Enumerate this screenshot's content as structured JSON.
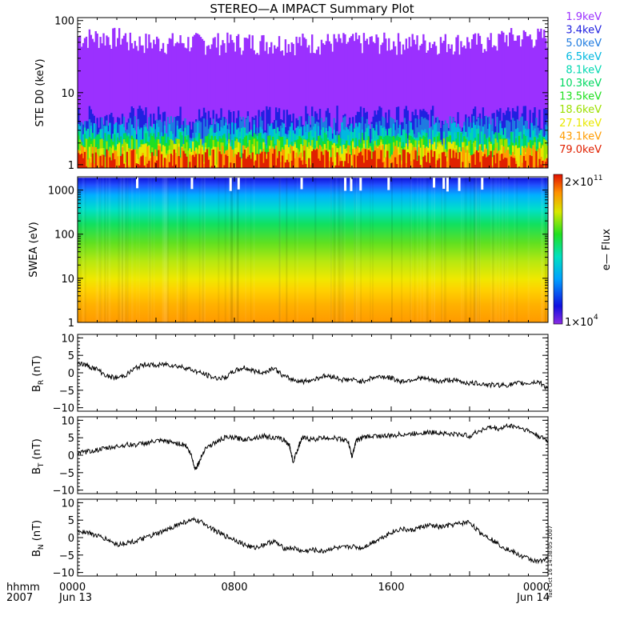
{
  "title": "STEREO—A IMPACT Summary Plot",
  "timestamp_text": "Tue Oct 16 14:38:05 2007",
  "time_axis": {
    "corner_top": "hhmm",
    "corner_bottom": "2007",
    "ticks": [
      {
        "hours": 0,
        "top": "0000",
        "bottom": "Jun 13"
      },
      {
        "hours": 8,
        "top": "0800",
        "bottom": ""
      },
      {
        "hours": 16,
        "top": "1600",
        "bottom": ""
      },
      {
        "hours": 24,
        "top": "0000",
        "bottom": "Jun 14"
      }
    ]
  },
  "chart_data": [
    {
      "type": "line",
      "id": "ste",
      "ylabel": "STE D0 (keV)",
      "yscale": "log",
      "ylim": [
        0.9,
        110
      ],
      "yticks": [
        {
          "v": 1,
          "label": "1"
        },
        {
          "v": 10,
          "label": "10"
        },
        {
          "v": 100,
          "label": "100"
        }
      ],
      "x_range_hours": [
        0,
        24
      ],
      "legend_position": "right",
      "series": [
        {
          "name": "1.9keV",
          "color": "#9b30ff",
          "level": 70
        },
        {
          "name": "3.4keV",
          "color": "#2020e0",
          "level": 4.4
        },
        {
          "name": "5.0keV",
          "color": "#1f7be0",
          "level": 3.2
        },
        {
          "name": "6.5keV",
          "color": "#00b8e0",
          "level": 2.6
        },
        {
          "name": "8.1keV",
          "color": "#00d8b0",
          "level": 2.2
        },
        {
          "name": "10.3keV",
          "color": "#00d860",
          "level": 1.9
        },
        {
          "name": "13.5keV",
          "color": "#20e020",
          "level": 1.7
        },
        {
          "name": "18.6keV",
          "color": "#9ce000",
          "level": 1.55
        },
        {
          "name": "27.1keV",
          "color": "#e8e800",
          "level": 1.4
        },
        {
          "name": "43.1keV",
          "color": "#ff9c00",
          "level": 1.25
        },
        {
          "name": "79.0keV",
          "color": "#e02000",
          "level": 1.1
        }
      ]
    },
    {
      "type": "heatmap",
      "id": "swea",
      "ylabel": "SWEA (eV)",
      "yscale": "log",
      "ylim": [
        1,
        2000
      ],
      "yticks": [
        {
          "v": 1,
          "label": "1"
        },
        {
          "v": 10,
          "label": "10"
        },
        {
          "v": 100,
          "label": "100"
        },
        {
          "v": 1000,
          "label": "1000"
        }
      ],
      "x_range_hours": [
        0,
        24
      ],
      "colorbar": {
        "label": "e— Flux",
        "max_label": "2×10",
        "max_exp": "11",
        "min_label": "1×10",
        "min_exp": "4",
        "range": [
          10000,
          200000000000
        ],
        "scale": "log"
      }
    },
    {
      "type": "line",
      "id": "br",
      "ylabel_main": "B",
      "ylabel_sub": "R",
      "ylabel_unit": " (nT)",
      "ylim": [
        -11,
        11
      ],
      "yticks": [
        {
          "v": 10,
          "label": "10"
        },
        {
          "v": 5,
          "label": "5"
        },
        {
          "v": 0,
          "label": "0"
        },
        {
          "v": -5,
          "label": "−5"
        },
        {
          "v": -10,
          "label": "−10"
        }
      ],
      "x_hours": [
        0,
        0.5,
        1,
        1.5,
        2,
        2.5,
        3,
        3.5,
        4,
        4.5,
        5,
        5.5,
        6,
        6.5,
        7,
        7.5,
        8,
        8.5,
        9,
        9.5,
        10,
        10.5,
        11,
        11.5,
        12,
        12.5,
        13,
        13.5,
        14,
        14.5,
        15,
        15.5,
        16,
        16.5,
        17,
        17.5,
        18,
        18.5,
        19,
        19.5,
        20,
        20.5,
        21,
        21.5,
        22,
        22.5,
        23,
        23.5,
        24
      ],
      "values": [
        3,
        2,
        1,
        -1,
        -1.5,
        -0.5,
        1.5,
        2.5,
        2,
        2.5,
        2,
        1.5,
        0.5,
        -0.5,
        -1.5,
        -1.5,
        0.5,
        1.5,
        0.5,
        0,
        1.5,
        -1,
        -2,
        -2.5,
        -2,
        -1,
        -1,
        -2,
        -2,
        -2.5,
        -1.5,
        -1,
        -1.5,
        -2.5,
        -2,
        -1.5,
        -2,
        -2.5,
        -2,
        -2.5,
        -3,
        -3,
        -3.5,
        -3.5,
        -3.5,
        -3,
        -3,
        -2.5,
        -4.5
      ]
    },
    {
      "type": "line",
      "id": "bt",
      "ylabel_main": "B",
      "ylabel_sub": "T",
      "ylabel_unit": " (nT)",
      "ylim": [
        -11,
        11
      ],
      "yticks": [
        {
          "v": 10,
          "label": "10"
        },
        {
          "v": 5,
          "label": "5"
        },
        {
          "v": 0,
          "label": "0"
        },
        {
          "v": -5,
          "label": "−5"
        },
        {
          "v": -10,
          "label": "−10"
        }
      ],
      "x_hours": [
        0,
        0.5,
        1,
        1.5,
        2,
        2.5,
        3,
        3.5,
        4,
        4.5,
        5,
        5.5,
        5.8,
        6,
        6.2,
        6.5,
        7,
        7.5,
        8,
        8.5,
        9,
        9.5,
        10,
        10.5,
        10.8,
        11,
        11.3,
        11.5,
        12,
        12.5,
        13,
        13.5,
        13.8,
        14,
        14.2,
        14.5,
        15,
        15.5,
        16,
        16.5,
        17,
        17.5,
        18,
        18.5,
        19,
        19.5,
        20,
        20.5,
        21,
        21.5,
        22,
        22.5,
        23,
        23.5,
        24
      ],
      "values": [
        0.5,
        1,
        1.5,
        2,
        2.5,
        3,
        3,
        3.5,
        4,
        4,
        3.5,
        3,
        0,
        -4,
        -2,
        2,
        3.5,
        5,
        5,
        4.5,
        5,
        5.5,
        5,
        4.5,
        3,
        -2,
        3,
        5,
        4.5,
        5,
        5,
        4.5,
        4,
        -0.5,
        4,
        5,
        5.5,
        5.5,
        5.5,
        6,
        6,
        6.5,
        6.5,
        6.5,
        6,
        6,
        5.5,
        7,
        8,
        7.5,
        8.5,
        8,
        7,
        5.5,
        4
      ]
    },
    {
      "type": "line",
      "id": "bn",
      "ylabel_main": "B",
      "ylabel_sub": "N",
      "ylabel_unit": " (nT)",
      "ylim": [
        -11,
        11
      ],
      "yticks": [
        {
          "v": 10,
          "label": "10"
        },
        {
          "v": 5,
          "label": "5"
        },
        {
          "v": 0,
          "label": "0"
        },
        {
          "v": -5,
          "label": "−5"
        },
        {
          "v": -10,
          "label": "−10"
        }
      ],
      "x_hours": [
        0,
        0.5,
        1,
        1.5,
        2,
        2.5,
        3,
        3.5,
        4,
        4.5,
        5,
        5.5,
        6,
        6.5,
        7,
        7.5,
        8,
        8.5,
        9,
        9.5,
        10,
        10.5,
        11,
        11.5,
        12,
        12.5,
        13,
        13.5,
        14,
        14.5,
        15,
        15.5,
        16,
        16.5,
        17,
        17.5,
        18,
        18.5,
        19,
        19.5,
        20,
        20.5,
        21,
        21.5,
        22,
        22.5,
        23,
        23.5,
        24
      ],
      "values": [
        2,
        1.5,
        0.5,
        -0.5,
        -2,
        -1.5,
        -1,
        0,
        1,
        2,
        3.5,
        4.5,
        5,
        4,
        2,
        0.5,
        -0.5,
        -2,
        -3,
        -2,
        -1,
        -3,
        -3,
        -4,
        -3.5,
        -4,
        -3,
        -3,
        -2.5,
        -3,
        -1.5,
        0,
        1.5,
        2.5,
        2,
        3,
        3.5,
        3,
        3.5,
        4,
        4.5,
        1.5,
        0,
        -2,
        -3.5,
        -5,
        -6,
        -7,
        -5.5
      ]
    }
  ]
}
